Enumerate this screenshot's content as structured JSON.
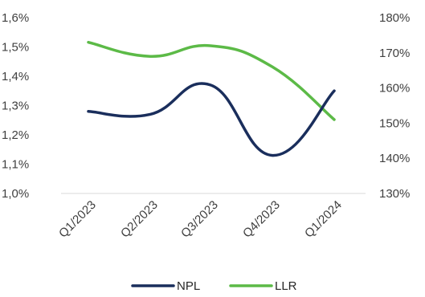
{
  "chart_data": {
    "type": "line",
    "categories": [
      "Q1/2023",
      "Q2/2023",
      "Q3/2023",
      "Q4/2023",
      "Q1/2024"
    ],
    "left_axis": {
      "ylim": [
        1.0,
        1.6
      ],
      "ticks": [
        1.0,
        1.1,
        1.2,
        1.3,
        1.4,
        1.5,
        1.6
      ],
      "tick_labels": [
        "1,0%",
        "1,1%",
        "1,2%",
        "1,3%",
        "1,4%",
        "1,5%",
        "1,6%"
      ]
    },
    "right_axis": {
      "ylim": [
        130,
        180
      ],
      "ticks": [
        130,
        140,
        150,
        160,
        170,
        180
      ],
      "tick_labels": [
        "130%",
        "140%",
        "150%",
        "160%",
        "170%",
        "180%"
      ]
    },
    "series": [
      {
        "name": "NPL",
        "axis": "left",
        "color": "#1a2e5c",
        "values": [
          1.28,
          1.27,
          1.37,
          1.13,
          1.35
        ]
      },
      {
        "name": "LLR",
        "axis": "right",
        "color": "#5cba47",
        "values": [
          173,
          169,
          172,
          166,
          151
        ]
      }
    ],
    "legend_position": "bottom",
    "grid": false
  }
}
